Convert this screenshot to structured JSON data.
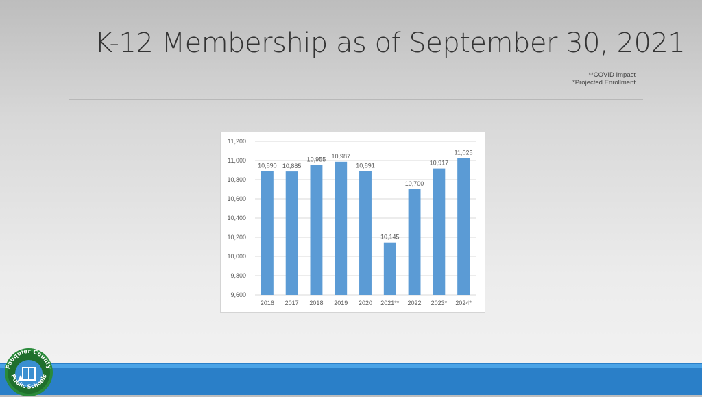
{
  "slide": {
    "title": "K-12 Membership as of September 30, 2021",
    "notes": [
      "**COVID Impact",
      "*Projected Enrollment"
    ]
  },
  "logo": {
    "text": "Fauquier County Public Schools"
  },
  "colors": {
    "bar": "#5b9bd5",
    "footer": "#2a7fc8",
    "grid": "#d9d9d9"
  },
  "chart_data": {
    "type": "bar",
    "categories": [
      "2016",
      "2017",
      "2018",
      "2019",
      "2020",
      "2021**",
      "2022",
      "2023*",
      "2024*"
    ],
    "values": [
      10890,
      10885,
      10955,
      10987,
      10891,
      10145,
      10700,
      10917,
      11025
    ],
    "data_labels": [
      "10,890",
      "10,885",
      "10,955",
      "10,987",
      "10,891",
      "10,145",
      "10,700",
      "10,917",
      "11,025"
    ],
    "yticks": [
      9600,
      9800,
      10000,
      10200,
      10400,
      10600,
      10800,
      11000,
      11200
    ],
    "ytick_labels": [
      "9,600",
      "9,800",
      "10,000",
      "10,200",
      "10,400",
      "10,600",
      "10,800",
      "11,000",
      "11,200"
    ],
    "ylim": [
      9600,
      11200
    ],
    "grid": true,
    "legend": "none"
  }
}
